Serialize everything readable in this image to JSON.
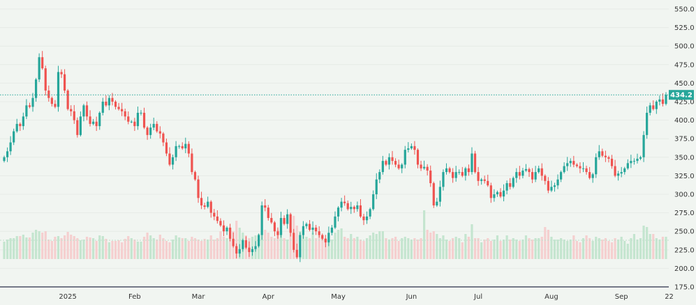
{
  "chart_data": {
    "type": "candlestick",
    "title": "",
    "last_price_label": "434.2",
    "last_price": 434.2,
    "y_ticks": [
      "550.0",
      "525.0",
      "500.0",
      "475.0",
      "450.0",
      "425.0",
      "400.0",
      "375.0",
      "350.0",
      "325.0",
      "300.0",
      "275.0",
      "250.0",
      "225.0",
      "200.0",
      "175.0"
    ],
    "ylim": [
      175,
      550
    ],
    "x_ticks": [
      {
        "label": "2025",
        "index": 20
      },
      {
        "label": "Feb",
        "index": 41
      },
      {
        "label": "Mar",
        "index": 61
      },
      {
        "label": "Apr",
        "index": 83
      },
      {
        "label": "May",
        "index": 105
      },
      {
        "label": "Jun",
        "index": 128
      },
      {
        "label": "Jul",
        "index": 149
      },
      {
        "label": "Aug",
        "index": 172
      },
      {
        "label": "Sep",
        "index": 194
      },
      {
        "label": "22",
        "index": 209
      }
    ],
    "first_open": 345,
    "close": [
      350,
      358,
      370,
      385,
      395,
      392,
      405,
      420,
      418,
      430,
      455,
      485,
      470,
      440,
      430,
      422,
      418,
      465,
      462,
      440,
      415,
      412,
      400,
      380,
      405,
      420,
      405,
      395,
      398,
      392,
      410,
      425,
      420,
      430,
      425,
      418,
      415,
      412,
      405,
      398,
      398,
      392,
      410,
      410,
      390,
      380,
      390,
      395,
      385,
      382,
      370,
      355,
      340,
      350,
      365,
      365,
      362,
      368,
      355,
      330,
      320,
      295,
      285,
      283,
      290,
      275,
      270,
      264,
      258,
      250,
      255,
      240,
      230,
      220,
      226,
      238,
      228,
      222,
      226,
      230,
      245,
      285,
      282,
      268,
      262,
      250,
      245,
      268,
      260,
      273,
      248,
      225,
      215,
      245,
      257,
      260,
      252,
      255,
      250,
      245,
      240,
      235,
      248,
      255,
      270,
      282,
      290,
      288,
      280,
      283,
      280,
      285,
      270,
      265,
      270,
      280,
      300,
      320,
      330,
      345,
      340,
      350,
      345,
      340,
      335,
      340,
      360,
      362,
      365,
      360,
      340,
      335,
      337,
      332,
      315,
      285,
      290,
      310,
      330,
      335,
      330,
      322,
      330,
      330,
      325,
      335,
      330,
      355,
      330,
      318,
      320,
      318,
      312,
      295,
      300,
      303,
      297,
      305,
      315,
      310,
      322,
      330,
      325,
      332,
      334,
      330,
      320,
      330,
      335,
      325,
      318,
      305,
      310,
      312,
      320,
      330,
      338,
      342,
      345,
      340,
      338,
      335,
      335,
      330,
      322,
      327,
      350,
      358,
      352,
      350,
      348,
      338,
      325,
      328,
      330,
      335,
      342,
      345,
      345,
      348,
      350,
      380,
      410,
      420,
      415,
      425,
      428,
      422,
      434.2
    ],
    "volume": [
      25,
      28,
      30,
      30,
      33,
      33,
      35,
      31,
      31,
      38,
      42,
      40,
      38,
      40,
      28,
      26,
      32,
      33,
      30,
      34,
      39,
      35,
      33,
      30,
      27,
      28,
      32,
      31,
      30,
      26,
      34,
      33,
      29,
      24,
      26,
      26,
      27,
      24,
      29,
      33,
      30,
      28,
      25,
      25,
      32,
      38,
      34,
      30,
      28,
      35,
      30,
      26,
      24,
      28,
      34,
      31,
      30,
      30,
      26,
      32,
      30,
      28,
      26,
      29,
      28,
      34,
      28,
      30,
      40,
      32,
      30,
      45,
      40,
      55,
      45,
      38,
      34,
      30,
      32,
      34,
      36,
      36,
      42,
      38,
      32,
      30,
      42,
      40,
      30,
      28,
      44,
      62,
      48,
      40,
      35,
      32,
      30,
      38,
      30,
      36,
      34,
      30,
      32,
      28,
      38,
      42,
      44,
      32,
      30,
      36,
      30,
      32,
      28,
      26,
      30,
      34,
      38,
      36,
      40,
      40,
      30,
      28,
      30,
      32,
      26,
      30,
      32,
      30,
      28,
      30,
      28,
      30,
      70,
      42,
      38,
      40,
      36,
      30,
      34,
      28,
      26,
      30,
      32,
      30,
      24,
      36,
      32,
      50,
      30,
      30,
      24,
      28,
      30,
      26,
      28,
      34,
      26,
      28,
      34,
      28,
      30,
      28,
      26,
      28,
      34,
      30,
      28,
      30,
      30,
      32,
      46,
      42,
      32,
      28,
      28,
      30,
      28,
      26,
      28,
      34,
      26,
      24,
      30,
      34,
      30,
      26,
      32,
      30,
      28,
      30,
      26,
      24,
      30,
      28,
      32,
      26,
      22,
      30,
      36,
      28,
      30,
      48,
      46,
      36,
      36,
      30,
      28,
      32,
      32
    ],
    "colors": {
      "up": "#26a69a",
      "down": "#ef5350",
      "up_volume": "#c4e5cf",
      "down_volume": "#f5cfcf",
      "background": "#f1f5f1",
      "axis": "#2a2e4a"
    }
  }
}
